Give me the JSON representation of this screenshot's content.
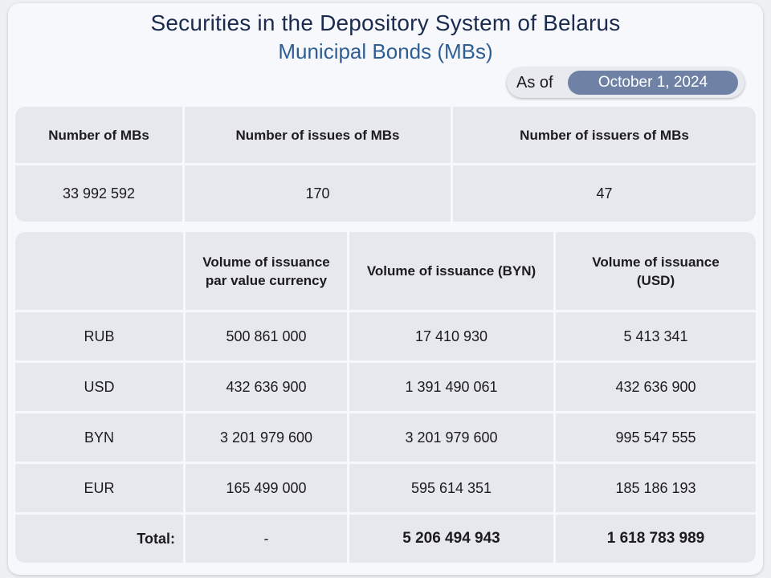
{
  "header": {
    "title": "Securities in the Depository System of Belarus",
    "subtitle": "Municipal Bonds (MBs)"
  },
  "as_of": {
    "label": "As of",
    "date": "October 1, 2024"
  },
  "summary": {
    "headers": [
      "Number of MBs",
      "Number of issues of MBs",
      "Number of issuers of MBs"
    ],
    "values": [
      "33 992 592",
      "170",
      "47"
    ]
  },
  "volume": {
    "headers": [
      "",
      "Volume of issuance par value currency",
      "Volume of issuance (BYN)",
      "Volume of issuance (USD)"
    ],
    "rows": [
      {
        "currency": "RUB",
        "par": "500 861 000",
        "byn": "17 410 930",
        "usd": "5 413 341"
      },
      {
        "currency": "USD",
        "par": "432 636 900",
        "byn": "1 391 490 061",
        "usd": "432 636 900"
      },
      {
        "currency": "BYN",
        "par": "3 201 979 600",
        "byn": "3 201 979 600",
        "usd": "995 547 555"
      },
      {
        "currency": "EUR",
        "par": "165 499 000",
        "byn": "595 614 351",
        "usd": "185 186 193"
      }
    ],
    "total": {
      "label": "Total:",
      "par": "-",
      "byn": "5 206 494 943",
      "usd": "1 618 783 989"
    }
  }
}
